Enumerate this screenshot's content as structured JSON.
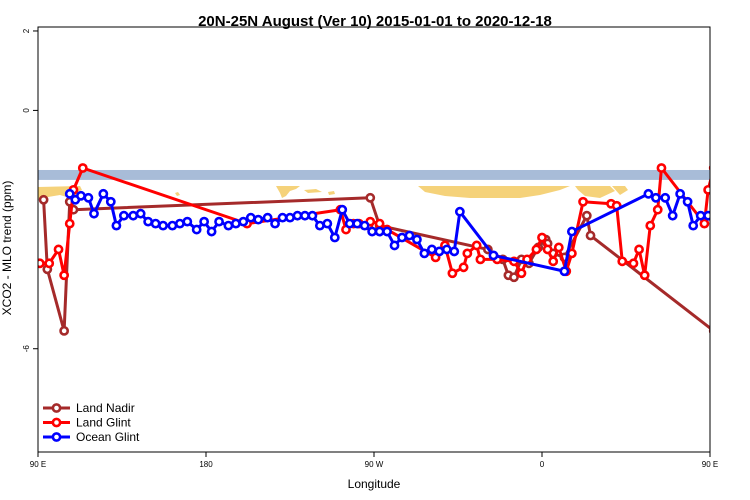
{
  "chart_data": {
    "type": "line",
    "title": "20N-25N August (Ver 10)   2015-01-01 to 2020-12-18",
    "xlabel": "Longitude",
    "ylabel": "XCO2 - MLO trend (ppm)",
    "x_axis_unwrapped_deg": [
      90,
      450
    ],
    "xlim": [
      90,
      450
    ],
    "ylim": [
      -8.6,
      2.1
    ],
    "x_ticks": [
      {
        "value": 90,
        "label": "90 E"
      },
      {
        "value": 180,
        "label": "180"
      },
      {
        "value": 270,
        "label": "90 W"
      },
      {
        "value": 360,
        "label": "0"
      },
      {
        "value": 450,
        "label": "90 E"
      }
    ],
    "y_ticks": [
      {
        "value": 2,
        "label": "2"
      },
      {
        "value": 0,
        "label": "0"
      },
      {
        "value": -6,
        "label": "-6"
      }
    ],
    "band": {
      "y_top": -1.5,
      "y_bottom": -1.75,
      "ocean_color": "#a8bcd8",
      "land_color": "#f5d27a"
    },
    "legend": {
      "position": "bottom-left"
    },
    "series": [
      {
        "name": "Land Nadir",
        "color": "#a52a2a",
        "points": [
          [
            93,
            -2.25
          ],
          [
            95,
            -4.0
          ],
          [
            104,
            -5.55
          ],
          [
            107,
            -2.3
          ],
          [
            109,
            -2.5
          ],
          [
            268,
            -2.2
          ],
          [
            273,
            -2.9
          ],
          [
            331,
            -3.5
          ],
          [
            339,
            -3.75
          ],
          [
            342,
            -4.15
          ],
          [
            345,
            -4.2
          ],
          [
            349,
            -3.75
          ],
          [
            353,
            -3.85
          ],
          [
            358,
            -3.45
          ],
          [
            362,
            -3.25
          ],
          [
            363,
            -3.35
          ],
          [
            366,
            -3.6
          ],
          [
            372,
            -3.7
          ],
          [
            384,
            -2.65
          ],
          [
            386,
            -3.15
          ],
          [
            452,
            -5.55
          ],
          [
            455,
            -2.25
          ],
          [
            458,
            -4.0
          ],
          [
            459,
            -2.5
          ]
        ]
      },
      {
        "name": "Land Glint",
        "color": "#ff0000",
        "points": [
          [
            91,
            -3.85
          ],
          [
            96,
            -3.85
          ],
          [
            101,
            -3.5
          ],
          [
            104,
            -4.15
          ],
          [
            107,
            -2.85
          ],
          [
            109,
            -2.0
          ],
          [
            114,
            -1.45
          ],
          [
            202,
            -2.85
          ],
          [
            252,
            -2.5
          ],
          [
            255,
            -3.0
          ],
          [
            259,
            -2.85
          ],
          [
            262,
            -2.85
          ],
          [
            267,
            -2.9
          ],
          [
            268,
            -2.8
          ],
          [
            273,
            -2.85
          ],
          [
            277,
            -3.0
          ],
          [
            303,
            -3.7
          ],
          [
            308,
            -3.4
          ],
          [
            312,
            -4.1
          ],
          [
            318,
            -3.95
          ],
          [
            320,
            -3.6
          ],
          [
            325,
            -3.4
          ],
          [
            327,
            -3.75
          ],
          [
            336,
            -3.75
          ],
          [
            345,
            -3.8
          ],
          [
            349,
            -4.1
          ],
          [
            352,
            -3.75
          ],
          [
            357,
            -3.5
          ],
          [
            360,
            -3.2
          ],
          [
            363,
            -3.5
          ],
          [
            366,
            -3.8
          ],
          [
            369,
            -3.45
          ],
          [
            373,
            -4.05
          ],
          [
            376,
            -3.6
          ],
          [
            382,
            -2.3
          ],
          [
            397,
            -2.35
          ],
          [
            400,
            -2.4
          ],
          [
            403,
            -3.8
          ],
          [
            409,
            -3.85
          ],
          [
            412,
            -3.5
          ],
          [
            415,
            -4.15
          ],
          [
            418,
            -2.9
          ],
          [
            422,
            -2.5
          ],
          [
            424,
            -1.45
          ],
          [
            447,
            -2.85
          ],
          [
            449,
            -2.0
          ],
          [
            452,
            -1.45
          ]
        ]
      },
      {
        "name": "Ocean Glint",
        "color": "#0000ff",
        "points": [
          [
            107,
            -2.1
          ],
          [
            110,
            -2.25
          ],
          [
            113,
            -2.15
          ],
          [
            117,
            -2.2
          ],
          [
            120,
            -2.6
          ],
          [
            125,
            -2.1
          ],
          [
            129,
            -2.3
          ],
          [
            132,
            -2.9
          ],
          [
            136,
            -2.65
          ],
          [
            141,
            -2.65
          ],
          [
            145,
            -2.6
          ],
          [
            149,
            -2.8
          ],
          [
            153,
            -2.85
          ],
          [
            157,
            -2.9
          ],
          [
            162,
            -2.9
          ],
          [
            166,
            -2.85
          ],
          [
            170,
            -2.8
          ],
          [
            175,
            -3.0
          ],
          [
            179,
            -2.8
          ],
          [
            183,
            -3.05
          ],
          [
            187,
            -2.8
          ],
          [
            192,
            -2.9
          ],
          [
            196,
            -2.85
          ],
          [
            200,
            -2.8
          ],
          [
            204,
            -2.7
          ],
          [
            208,
            -2.75
          ],
          [
            213,
            -2.7
          ],
          [
            217,
            -2.85
          ],
          [
            221,
            -2.7
          ],
          [
            225,
            -2.7
          ],
          [
            229,
            -2.65
          ],
          [
            233,
            -2.65
          ],
          [
            237,
            -2.65
          ],
          [
            241,
            -2.9
          ],
          [
            245,
            -2.85
          ],
          [
            249,
            -3.2
          ],
          [
            253,
            -2.5
          ],
          [
            257,
            -2.85
          ],
          [
            261,
            -2.85
          ],
          [
            265,
            -2.9
          ],
          [
            269,
            -3.05
          ],
          [
            273,
            -3.05
          ],
          [
            277,
            -3.05
          ],
          [
            281,
            -3.4
          ],
          [
            285,
            -3.2
          ],
          [
            289,
            -3.15
          ],
          [
            293,
            -3.25
          ],
          [
            297,
            -3.6
          ],
          [
            301,
            -3.5
          ],
          [
            305,
            -3.55
          ],
          [
            309,
            -3.5
          ],
          [
            313,
            -3.55
          ],
          [
            316,
            -2.55
          ],
          [
            334,
            -3.65
          ],
          [
            372,
            -4.05
          ],
          [
            376,
            -3.05
          ],
          [
            417,
            -2.1
          ],
          [
            421,
            -2.2
          ],
          [
            426,
            -2.2
          ],
          [
            430,
            -2.65
          ],
          [
            434,
            -2.1
          ],
          [
            438,
            -2.3
          ],
          [
            441,
            -2.9
          ],
          [
            445,
            -2.65
          ],
          [
            449,
            -2.65
          ],
          [
            454,
            -2.6
          ],
          [
            458,
            -2.8
          ],
          [
            462,
            -2.85
          ],
          [
            466,
            -2.9
          ],
          [
            470,
            -2.9
          ],
          [
            475,
            -2.85
          ]
        ]
      }
    ]
  }
}
